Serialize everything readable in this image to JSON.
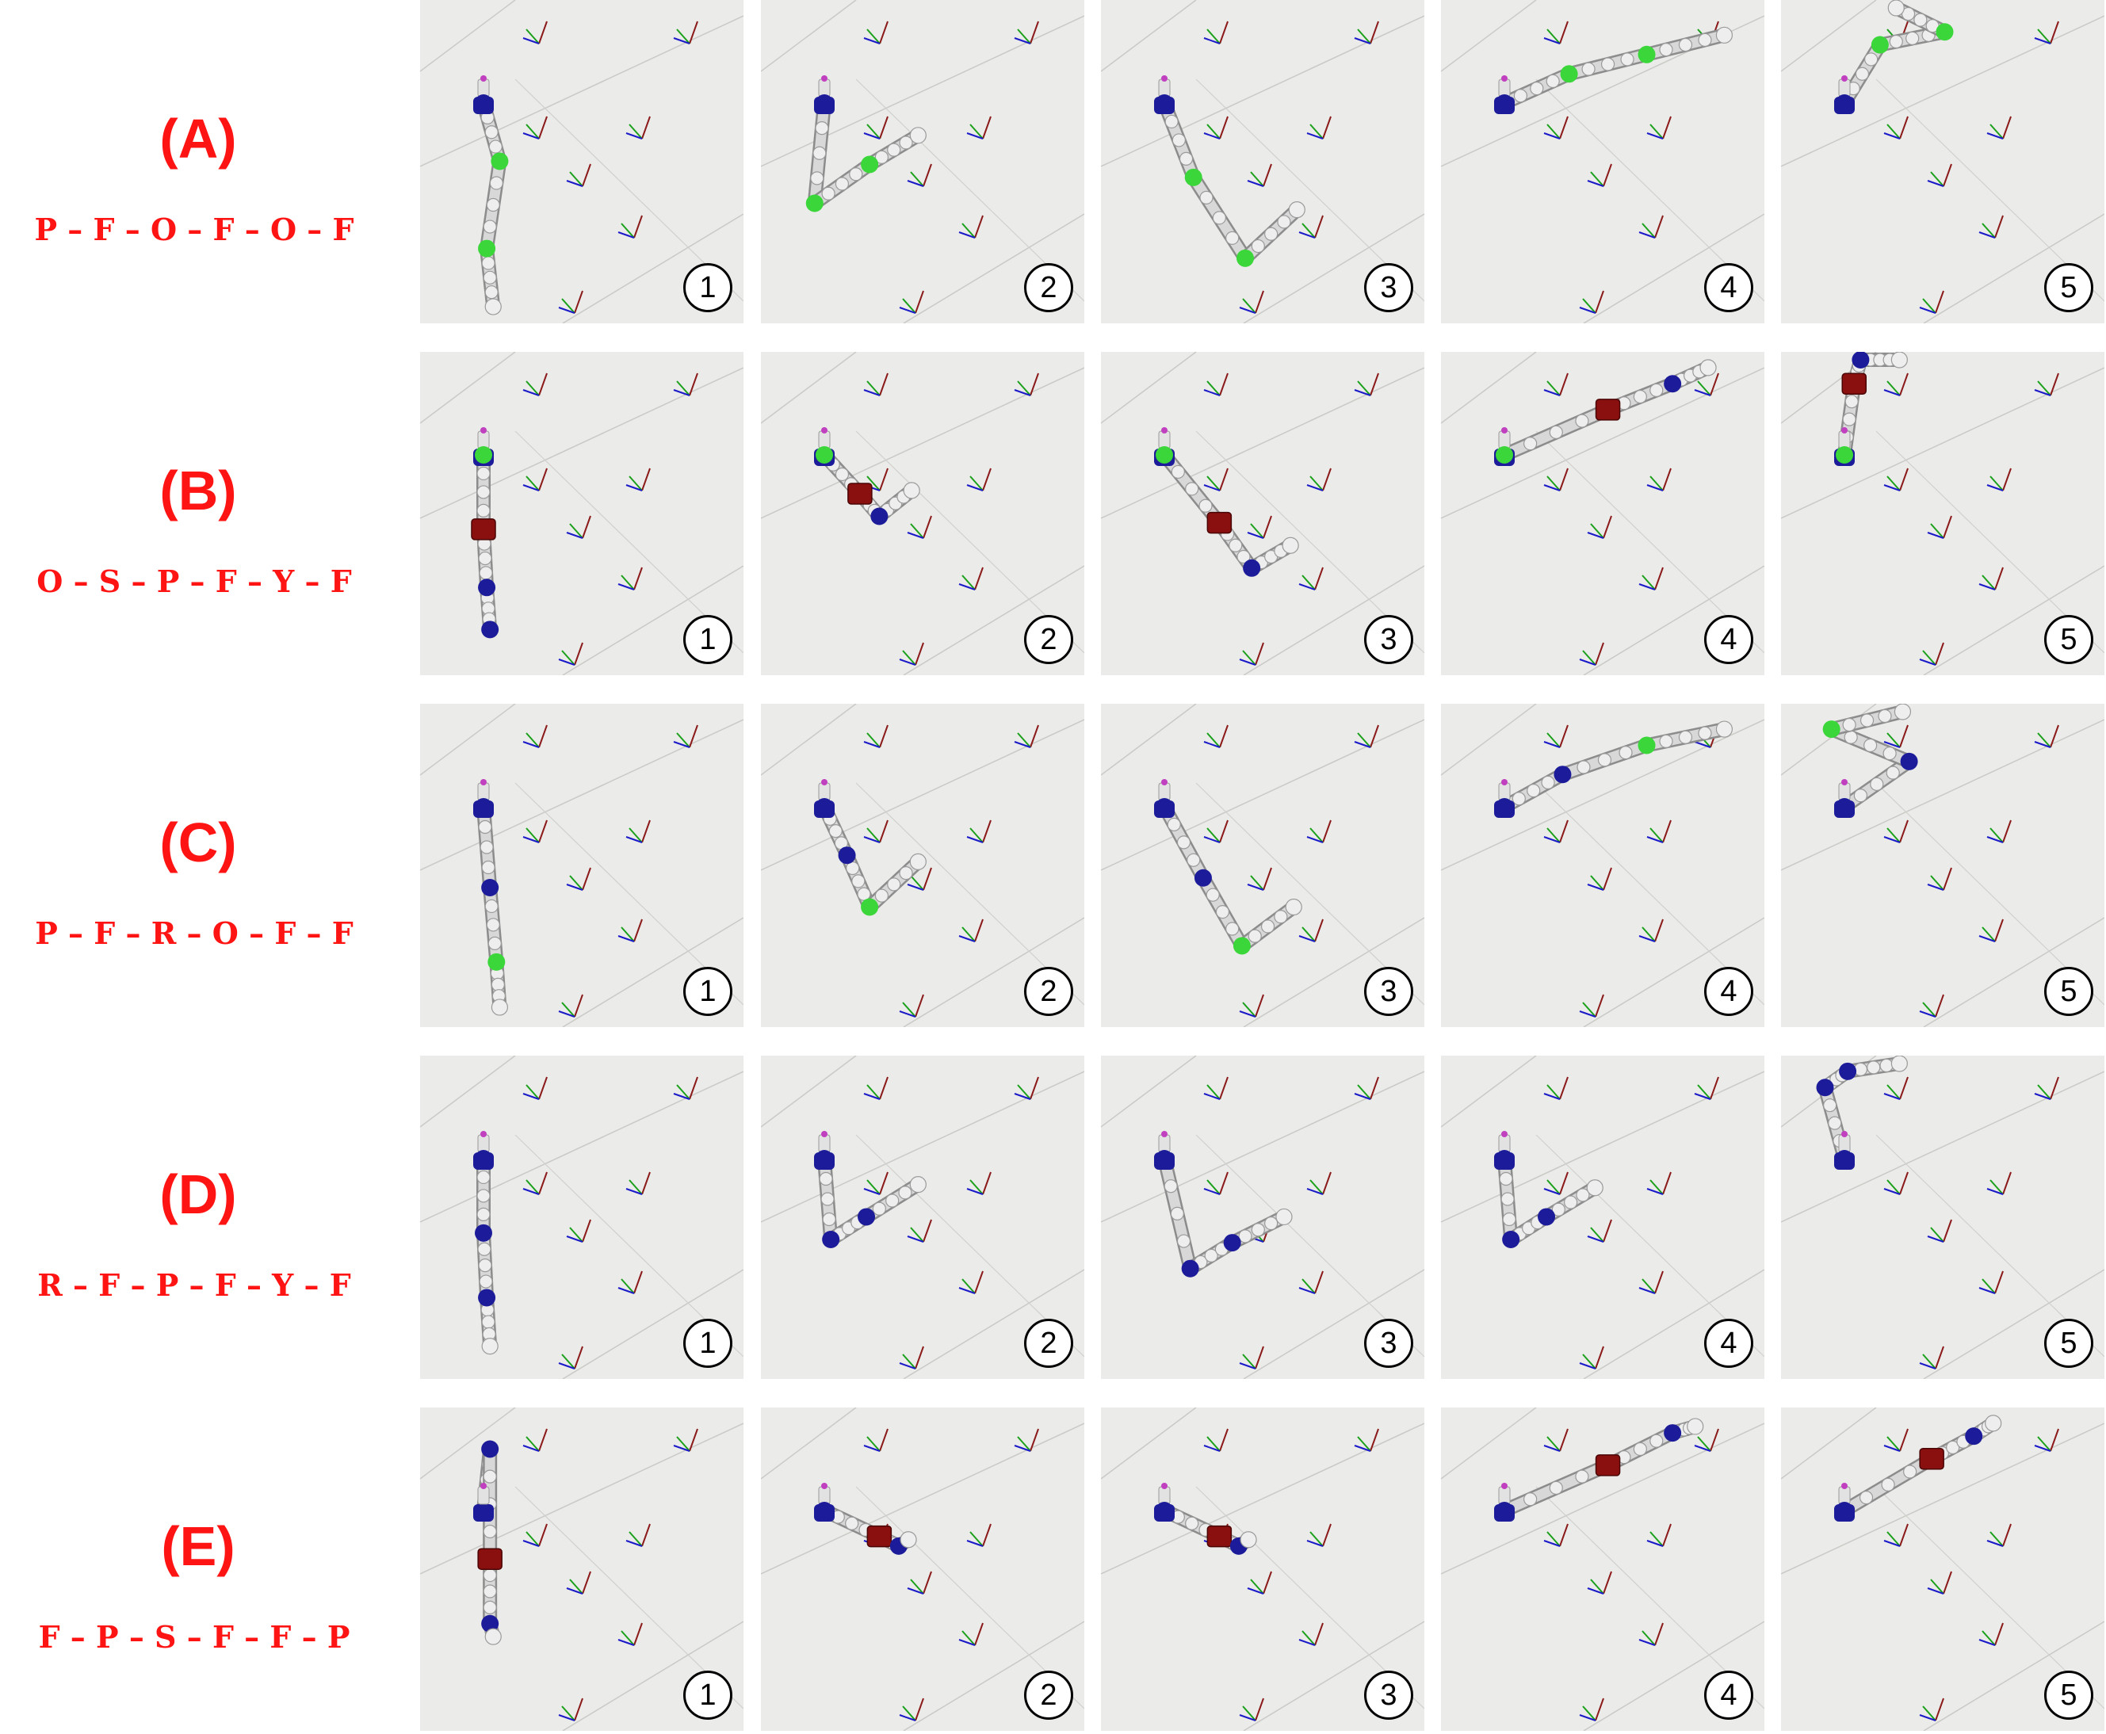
{
  "colors": {
    "label": "#ff1414",
    "panel_bg": "#ebebe9",
    "link": "#d8d8d8",
    "node_white": "#eeeeee",
    "node_green": "#3ad63a",
    "node_blue": "#1c1c9a",
    "node_red": "#8a1010",
    "tip_magenta": "#c040c0",
    "axis_x": "#8b1a1a",
    "axis_y": "#1aa01a",
    "axis_z": "#1a1ac8"
  },
  "rows": [
    {
      "letter": "(A)",
      "sequence": "P – F – O – F – O – F",
      "panels": [
        {
          "number": "1",
          "chain": [
            [
              0.13,
              0.17,
              "blue"
            ],
            [
              0.18,
              0.35,
              "green"
            ],
            [
              0.14,
              0.62,
              "green"
            ],
            [
              0.16,
              0.8,
              "white"
            ]
          ]
        },
        {
          "number": "2",
          "chain": [
            [
              0.13,
              0.17,
              "blue"
            ],
            [
              0.1,
              0.48,
              "green"
            ],
            [
              0.27,
              0.36,
              "green"
            ],
            [
              0.42,
              0.27,
              "white"
            ]
          ]
        },
        {
          "number": "3",
          "chain": [
            [
              0.13,
              0.17,
              "blue"
            ],
            [
              0.22,
              0.4,
              "green"
            ],
            [
              0.38,
              0.65,
              "green"
            ],
            [
              0.54,
              0.5,
              "white"
            ]
          ]
        },
        {
          "number": "4",
          "chain": [
            [
              0.13,
              0.17,
              "blue"
            ],
            [
              0.33,
              0.08,
              "green"
            ],
            [
              0.57,
              0.02,
              "green"
            ],
            [
              0.81,
              -0.04,
              "white"
            ]
          ]
        },
        {
          "number": "5",
          "chain": [
            [
              0.13,
              0.17,
              "blue"
            ],
            [
              0.24,
              -0.01,
              "green"
            ],
            [
              0.44,
              -0.05,
              "green"
            ],
            [
              0.29,
              -0.2,
              "white"
            ]
          ]
        }
      ]
    },
    {
      "letter": "(B)",
      "sequence": "O – S – P – F – Y – F",
      "panels": [
        {
          "number": "1",
          "chain": [
            [
              0.13,
              0.17,
              "green"
            ],
            [
              0.13,
              0.4,
              "red"
            ],
            [
              0.14,
              0.58,
              "blue"
            ],
            [
              0.15,
              0.71,
              "blue"
            ]
          ]
        },
        {
          "number": "2",
          "chain": [
            [
              0.13,
              0.17,
              "green"
            ],
            [
              0.24,
              0.29,
              "red"
            ],
            [
              0.3,
              0.36,
              "blue"
            ],
            [
              0.4,
              0.28,
              "white"
            ]
          ]
        },
        {
          "number": "3",
          "chain": [
            [
              0.13,
              0.17,
              "green"
            ],
            [
              0.3,
              0.38,
              "red"
            ],
            [
              0.4,
              0.52,
              "blue"
            ],
            [
              0.52,
              0.45,
              "white"
            ]
          ]
        },
        {
          "number": "4",
          "chain": [
            [
              0.13,
              0.17,
              "green"
            ],
            [
              0.45,
              0.03,
              "red"
            ],
            [
              0.65,
              -0.05,
              "blue"
            ],
            [
              0.76,
              -0.1,
              "white"
            ]
          ]
        },
        {
          "number": "5",
          "chain": [
            [
              0.13,
              0.17,
              "green"
            ],
            [
              0.16,
              -0.05,
              "red"
            ],
            [
              0.18,
              -0.18,
              "blue"
            ],
            [
              0.3,
              -0.23,
              "white"
            ]
          ]
        }
      ]
    },
    {
      "letter": "(C)",
      "sequence": "P – F – R – O – F – F",
      "panels": [
        {
          "number": "1",
          "chain": [
            [
              0.13,
              0.17,
              "blue"
            ],
            [
              0.15,
              0.42,
              "blue"
            ],
            [
              0.17,
              0.65,
              "green"
            ],
            [
              0.18,
              0.79,
              "white"
            ]
          ]
        },
        {
          "number": "2",
          "chain": [
            [
              0.13,
              0.17,
              "blue"
            ],
            [
              0.2,
              0.32,
              "blue"
            ],
            [
              0.27,
              0.48,
              "green"
            ],
            [
              0.42,
              0.34,
              "white"
            ]
          ]
        },
        {
          "number": "3",
          "chain": [
            [
              0.13,
              0.17,
              "blue"
            ],
            [
              0.25,
              0.39,
              "blue"
            ],
            [
              0.37,
              0.6,
              "green"
            ],
            [
              0.53,
              0.48,
              "white"
            ]
          ]
        },
        {
          "number": "4",
          "chain": [
            [
              0.13,
              0.17,
              "blue"
            ],
            [
              0.31,
              0.07,
              "blue"
            ],
            [
              0.57,
              -0.02,
              "green"
            ],
            [
              0.81,
              -0.07,
              "white"
            ]
          ]
        },
        {
          "number": "5",
          "chain": [
            [
              0.13,
              0.17,
              "blue"
            ],
            [
              0.33,
              0.03,
              "blue"
            ],
            [
              0.09,
              -0.07,
              "green"
            ],
            [
              0.31,
              -0.17,
              "white"
            ]
          ]
        }
      ]
    },
    {
      "letter": "(D)",
      "sequence": "R – F – P – F – Y – F",
      "panels": [
        {
          "number": "1",
          "chain": [
            [
              0.13,
              0.17,
              "blue"
            ],
            [
              0.13,
              0.4,
              "blue"
            ],
            [
              0.14,
              0.6,
              "blue"
            ],
            [
              0.15,
              0.75,
              "white"
            ]
          ]
        },
        {
          "number": "2",
          "chain": [
            [
              0.13,
              0.17,
              "blue"
            ],
            [
              0.15,
              0.42,
              "blue"
            ],
            [
              0.26,
              0.35,
              "blue"
            ],
            [
              0.42,
              0.25,
              "white"
            ]
          ]
        },
        {
          "number": "3",
          "chain": [
            [
              0.13,
              0.17,
              "blue"
            ],
            [
              0.21,
              0.51,
              "blue"
            ],
            [
              0.34,
              0.43,
              "blue"
            ],
            [
              0.5,
              0.35,
              "white"
            ]
          ]
        },
        {
          "number": "4",
          "chain": [
            [
              0.13,
              0.17,
              "blue"
            ],
            [
              0.15,
              0.42,
              "blue"
            ],
            [
              0.26,
              0.35,
              "blue"
            ],
            [
              0.41,
              0.26,
              "white"
            ]
          ]
        },
        {
          "number": "5",
          "chain": [
            [
              0.13,
              0.17,
              "blue"
            ],
            [
              0.07,
              -0.05,
              "blue"
            ],
            [
              0.14,
              -0.1,
              "blue"
            ],
            [
              0.3,
              -0.19,
              "white"
            ]
          ]
        }
      ]
    },
    {
      "letter": "(E)",
      "sequence": "F – P – S – F – F – P",
      "panels": [
        {
          "number": "1",
          "chain": [
            [
              0.15,
              -0.02,
              "blue"
            ],
            [
              0.15,
              0.32,
              "red"
            ],
            [
              0.15,
              0.52,
              "blue"
            ],
            [
              0.16,
              0.56,
              "white"
            ]
          ]
        },
        {
          "number": "2",
          "chain": [
            [
              0.13,
              0.17,
              "blue"
            ],
            [
              0.3,
              0.25,
              "red"
            ],
            [
              0.36,
              0.28,
              "blue"
            ],
            [
              0.39,
              0.26,
              "white"
            ]
          ]
        },
        {
          "number": "3",
          "chain": [
            [
              0.13,
              0.17,
              "blue"
            ],
            [
              0.3,
              0.25,
              "red"
            ],
            [
              0.36,
              0.28,
              "blue"
            ],
            [
              0.39,
              0.26,
              "white"
            ]
          ]
        },
        {
          "number": "4",
          "chain": [
            [
              0.13,
              0.17,
              "blue"
            ],
            [
              0.45,
              0.03,
              "red"
            ],
            [
              0.65,
              -0.07,
              "blue"
            ],
            [
              0.72,
              -0.09,
              "white"
            ]
          ]
        },
        {
          "number": "5",
          "chain": [
            [
              0.13,
              0.17,
              "blue"
            ],
            [
              0.4,
              0.01,
              "red"
            ],
            [
              0.53,
              -0.06,
              "blue"
            ],
            [
              0.59,
              -0.1,
              "white"
            ]
          ]
        }
      ]
    }
  ]
}
